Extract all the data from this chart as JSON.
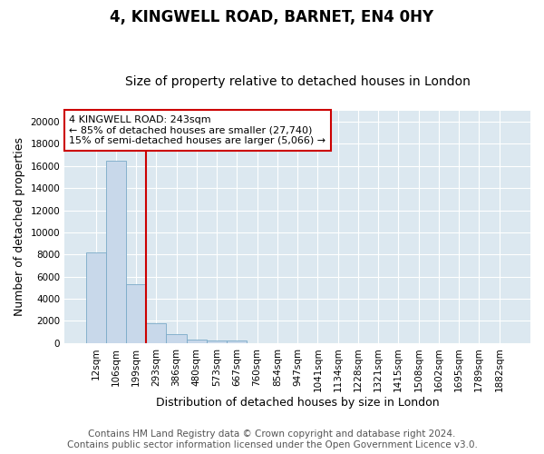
{
  "title": "4, KINGWELL ROAD, BARNET, EN4 0HY",
  "subtitle": "Size of property relative to detached houses in London",
  "xlabel": "Distribution of detached houses by size in London",
  "ylabel": "Number of detached properties",
  "footer_line1": "Contains HM Land Registry data © Crown copyright and database right 2024.",
  "footer_line2": "Contains public sector information licensed under the Open Government Licence v3.0.",
  "bar_labels": [
    "12sqm",
    "106sqm",
    "199sqm",
    "293sqm",
    "386sqm",
    "480sqm",
    "573sqm",
    "667sqm",
    "760sqm",
    "854sqm",
    "947sqm",
    "1041sqm",
    "1134sqm",
    "1228sqm",
    "1321sqm",
    "1415sqm",
    "1508sqm",
    "1602sqm",
    "1695sqm",
    "1789sqm",
    "1882sqm"
  ],
  "bar_heights": [
    8200,
    16500,
    5300,
    1800,
    800,
    300,
    250,
    250,
    0,
    0,
    0,
    0,
    0,
    0,
    0,
    0,
    0,
    0,
    0,
    0,
    0
  ],
  "bar_color": "#c8d8ea",
  "bar_edge_color": "#7aaac8",
  "vline_color": "#cc0000",
  "annotation_text": "4 KINGWELL ROAD: 243sqm\n← 85% of detached houses are smaller (27,740)\n15% of semi-detached houses are larger (5,066) →",
  "annotation_box_color": "#cc0000",
  "ylim": [
    0,
    21000
  ],
  "yticks": [
    0,
    2000,
    4000,
    6000,
    8000,
    10000,
    12000,
    14000,
    16000,
    18000,
    20000
  ],
  "plot_bg": "#dce8f0",
  "fig_bg": "#ffffff",
  "grid_color": "#ffffff",
  "title_fontsize": 12,
  "subtitle_fontsize": 10,
  "axis_label_fontsize": 9,
  "tick_fontsize": 7.5,
  "annotation_fontsize": 8,
  "footer_fontsize": 7.5
}
